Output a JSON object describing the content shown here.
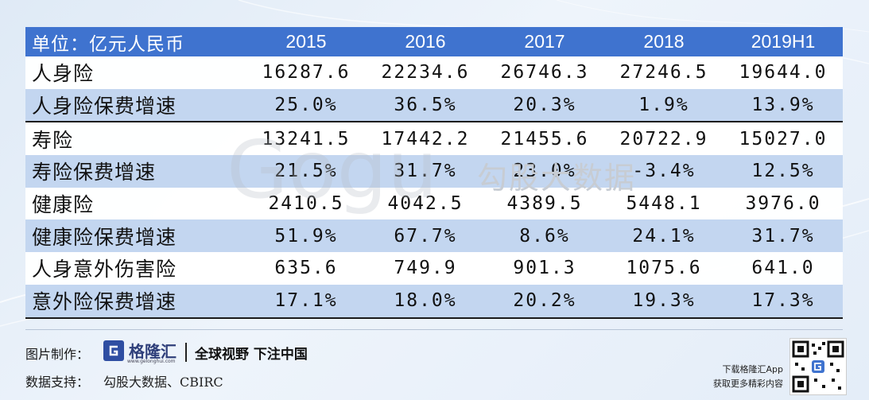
{
  "table": {
    "headers": [
      "单位：亿元人民币",
      "2015",
      "2016",
      "2017",
      "2018",
      "2019H1"
    ],
    "rows": [
      {
        "name": "人身险",
        "values": [
          "16287.6",
          "22234.6",
          "26746.3",
          "27246.5",
          "19644.0"
        ],
        "style": "white"
      },
      {
        "name": "人身险保费增速",
        "values": [
          "25.0%",
          "36.5%",
          "20.3%",
          "1.9%",
          "13.9%"
        ],
        "style": "blue"
      },
      {
        "name": "寿险",
        "values": [
          "13241.5",
          "17442.2",
          "21455.6",
          "20722.9",
          "15027.0"
        ],
        "style": "white"
      },
      {
        "name": "寿险保费增速",
        "values": [
          "21.5%",
          "31.7%",
          "23.0%",
          "-3.4%",
          "12.5%"
        ],
        "style": "blue"
      },
      {
        "name": "健康险",
        "values": [
          "2410.5",
          "4042.5",
          "4389.5",
          "5448.1",
          "3976.0"
        ],
        "style": "white"
      },
      {
        "name": "健康险保费增速",
        "values": [
          "51.9%",
          "67.7%",
          "8.6%",
          "24.1%",
          "31.7%"
        ],
        "style": "blue"
      },
      {
        "name": "人身意外伤害险",
        "values": [
          "635.6",
          "749.9",
          "901.3",
          "1075.6",
          "641.0"
        ],
        "style": "white"
      },
      {
        "name": "意外险保费增速",
        "values": [
          "17.1%",
          "18.0%",
          "20.2%",
          "19.3%",
          "17.3%"
        ],
        "style": "blue"
      }
    ]
  },
  "watermark": {
    "latin": "Gogu",
    "cn": "勾股大数据"
  },
  "footer": {
    "made_by_label": "图片制作：",
    "logo_name": "格隆汇",
    "logo_url": "www.gelonghui.com",
    "slogan": "全球视野 下注中国",
    "source_label": "数据支持：",
    "source_value": "勾股大数据、CBIRC",
    "download_line1": "下载格隆汇App",
    "download_line2": "获取更多精彩内容"
  },
  "colors": {
    "header_bg": "#3f73cf",
    "row_blue": "#c3d6f0",
    "logo": "#2f4ea2"
  }
}
